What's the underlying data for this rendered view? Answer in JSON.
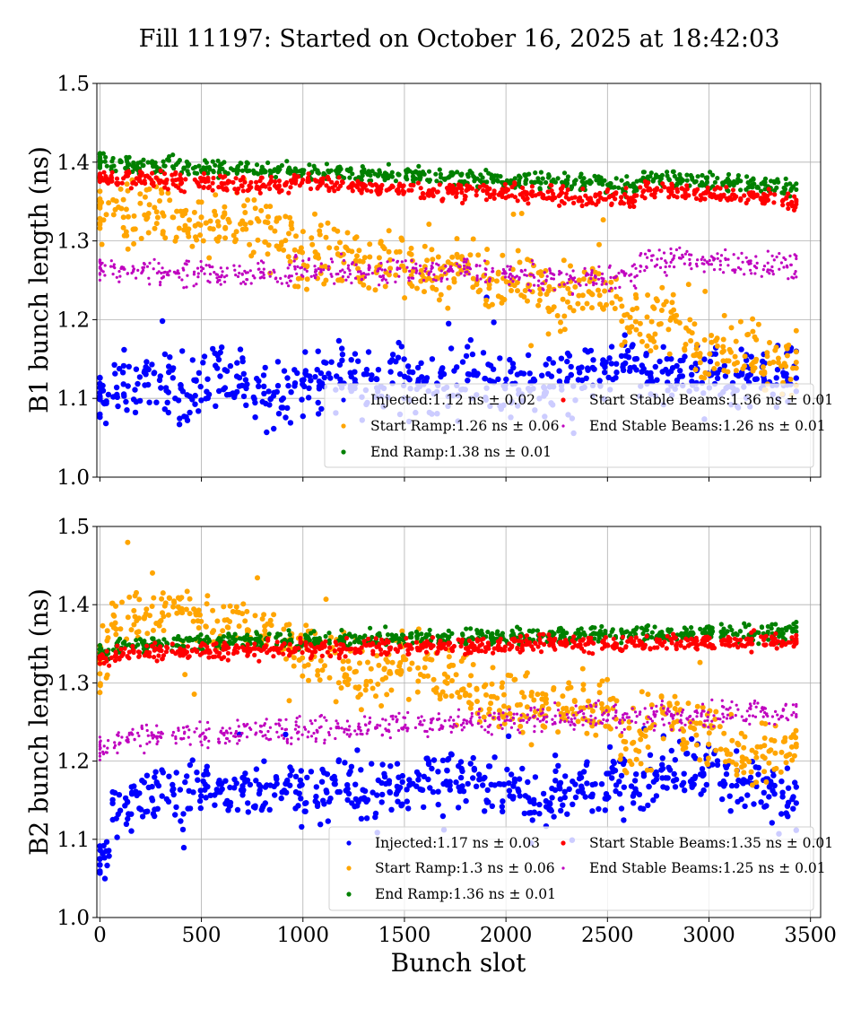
{
  "chart_data": [
    {
      "type": "scatter",
      "title": "Fill 11197: Started on October 16, 2025 at 18:42:03",
      "xlabel": "",
      "ylabel": "B1 bunch length (ns)",
      "xlim": [
        -15,
        3550
      ],
      "ylim": [
        1.0,
        1.5
      ],
      "xticks": [
        "0",
        "500",
        "1000",
        "1500",
        "2000",
        "2500",
        "3000",
        "3500"
      ],
      "yticks": [
        "1.0",
        "1.1",
        "1.2",
        "1.3",
        "1.4",
        "1.5"
      ],
      "grid": true,
      "legend_position": "lower-right",
      "x": [
        0,
        100,
        200,
        300,
        400,
        500,
        600,
        700,
        800,
        900,
        1000,
        1100,
        1200,
        1300,
        1400,
        1500,
        1600,
        1700,
        1800,
        1900,
        2000,
        2100,
        2200,
        2300,
        2400,
        2500,
        2600,
        2700,
        2800,
        2900,
        3000,
        3100,
        3200,
        3300,
        3400
      ],
      "series": [
        {
          "name": "Injected:1.12 ns ± 0.02",
          "color": "#0000ff",
          "values": [
            1.1,
            1.12,
            1.12,
            1.12,
            1.11,
            1.12,
            1.12,
            1.12,
            1.11,
            1.1,
            1.12,
            1.12,
            1.13,
            1.12,
            1.12,
            1.12,
            1.12,
            1.12,
            1.12,
            1.13,
            1.12,
            1.12,
            1.12,
            1.12,
            1.13,
            1.13,
            1.14,
            1.13,
            1.12,
            1.13,
            1.13,
            1.12,
            1.13,
            1.13,
            1.13
          ]
        },
        {
          "name": "Start Ramp:1.26 ns ± 0.06",
          "color": "#ffa500",
          "values": [
            1.34,
            1.34,
            1.34,
            1.34,
            1.32,
            1.32,
            1.33,
            1.33,
            1.31,
            1.31,
            1.28,
            1.28,
            1.29,
            1.27,
            1.27,
            1.27,
            1.26,
            1.26,
            1.26,
            1.25,
            1.25,
            1.25,
            1.23,
            1.23,
            1.24,
            1.24,
            1.2,
            1.2,
            1.2,
            1.17,
            1.17,
            1.16,
            1.16,
            1.14,
            1.14
          ]
        },
        {
          "name": "End Ramp:1.38 ns ± 0.01",
          "color": "#008000",
          "values": [
            1.4,
            1.4,
            1.398,
            1.397,
            1.395,
            1.395,
            1.393,
            1.392,
            1.39,
            1.389,
            1.388,
            1.387,
            1.386,
            1.384,
            1.383,
            1.382,
            1.381,
            1.38,
            1.379,
            1.378,
            1.377,
            1.376,
            1.375,
            1.374,
            1.372,
            1.371,
            1.37,
            1.38,
            1.38,
            1.378,
            1.376,
            1.374,
            1.372,
            1.37,
            1.366
          ]
        },
        {
          "name": "Start Stable Beams:1.36 ns ± 0.01",
          "color": "#ff0000",
          "values": [
            1.378,
            1.38,
            1.378,
            1.377,
            1.375,
            1.374,
            1.373,
            1.372,
            1.372,
            1.371,
            1.376,
            1.373,
            1.37,
            1.368,
            1.367,
            1.366,
            1.365,
            1.364,
            1.363,
            1.362,
            1.362,
            1.36,
            1.358,
            1.357,
            1.356,
            1.355,
            1.353,
            1.365,
            1.365,
            1.362,
            1.36,
            1.358,
            1.356,
            1.354,
            1.35
          ]
        },
        {
          "name": "End Stable Beams:1.26 ns ± 0.01",
          "color": "#bf00bf",
          "values": [
            1.265,
            1.265,
            1.26,
            1.262,
            1.26,
            1.258,
            1.258,
            1.257,
            1.257,
            1.258,
            1.268,
            1.262,
            1.262,
            1.262,
            1.26,
            1.26,
            1.262,
            1.262,
            1.262,
            1.26,
            1.258,
            1.255,
            1.252,
            1.25,
            1.255,
            1.255,
            1.255,
            1.275,
            1.275,
            1.275,
            1.275,
            1.272,
            1.272,
            1.27,
            1.27
          ]
        }
      ]
    },
    {
      "type": "scatter",
      "xlabel": "Bunch slot",
      "ylabel": "B2 bunch length (ns)",
      "xlim": [
        -15,
        3550
      ],
      "ylim": [
        1.0,
        1.5
      ],
      "xticks": [
        "0",
        "500",
        "1000",
        "1500",
        "2000",
        "2500",
        "3000",
        "3500"
      ],
      "yticks": [
        "1.0",
        "1.1",
        "1.2",
        "1.3",
        "1.4",
        "1.5"
      ],
      "grid": true,
      "legend_position": "lower-right",
      "x": [
        0,
        100,
        200,
        300,
        400,
        500,
        600,
        700,
        800,
        900,
        1000,
        1100,
        1200,
        1300,
        1400,
        1500,
        1600,
        1700,
        1800,
        1900,
        2000,
        2100,
        2200,
        2300,
        2400,
        2500,
        2600,
        2700,
        2800,
        2900,
        3000,
        3100,
        3200,
        3300,
        3400
      ],
      "series": [
        {
          "name": "Injected:1.17 ns ± 0.03",
          "color": "#0000ff",
          "values": [
            1.07,
            1.14,
            1.15,
            1.16,
            1.16,
            1.17,
            1.16,
            1.16,
            1.16,
            1.17,
            1.16,
            1.16,
            1.17,
            1.16,
            1.16,
            1.17,
            1.18,
            1.17,
            1.17,
            1.18,
            1.17,
            1.16,
            1.16,
            1.16,
            1.17,
            1.18,
            1.17,
            1.18,
            1.19,
            1.19,
            1.19,
            1.17,
            1.17,
            1.17,
            1.16
          ]
        },
        {
          "name": "Start Ramp:1.3 ns ± 0.06",
          "color": "#ffa500",
          "values": [
            1.33,
            1.39,
            1.39,
            1.39,
            1.39,
            1.38,
            1.37,
            1.37,
            1.36,
            1.36,
            1.34,
            1.33,
            1.32,
            1.31,
            1.31,
            1.32,
            1.32,
            1.3,
            1.3,
            1.29,
            1.29,
            1.27,
            1.27,
            1.27,
            1.27,
            1.27,
            1.22,
            1.24,
            1.26,
            1.24,
            1.24,
            1.21,
            1.21,
            1.21,
            1.21
          ]
        },
        {
          "name": "End Ramp:1.36 ns ± 0.01",
          "color": "#008000",
          "values": [
            1.34,
            1.348,
            1.35,
            1.35,
            1.352,
            1.352,
            1.353,
            1.354,
            1.354,
            1.355,
            1.355,
            1.355,
            1.356,
            1.356,
            1.357,
            1.357,
            1.358,
            1.358,
            1.359,
            1.359,
            1.36,
            1.36,
            1.36,
            1.361,
            1.362,
            1.362,
            1.362,
            1.362,
            1.362,
            1.363,
            1.363,
            1.364,
            1.364,
            1.365,
            1.366
          ]
        },
        {
          "name": "Start Stable Beams:1.35 ns ± 0.01",
          "color": "#ff0000",
          "values": [
            1.332,
            1.338,
            1.338,
            1.339,
            1.34,
            1.34,
            1.341,
            1.342,
            1.343,
            1.343,
            1.344,
            1.344,
            1.345,
            1.345,
            1.346,
            1.346,
            1.347,
            1.347,
            1.348,
            1.348,
            1.348,
            1.349,
            1.35,
            1.35,
            1.351,
            1.351,
            1.351,
            1.351,
            1.351,
            1.352,
            1.352,
            1.352,
            1.353,
            1.353,
            1.354
          ]
        },
        {
          "name": "End Stable Beams:1.25 ns ± 0.01",
          "color": "#bf00bf",
          "values": [
            1.215,
            1.228,
            1.232,
            1.233,
            1.234,
            1.235,
            1.236,
            1.237,
            1.238,
            1.239,
            1.24,
            1.241,
            1.242,
            1.244,
            1.245,
            1.248,
            1.25,
            1.25,
            1.251,
            1.252,
            1.253,
            1.255,
            1.256,
            1.257,
            1.258,
            1.26,
            1.255,
            1.258,
            1.258,
            1.26,
            1.26,
            1.262,
            1.263,
            1.264,
            1.265
          ]
        }
      ]
    }
  ]
}
